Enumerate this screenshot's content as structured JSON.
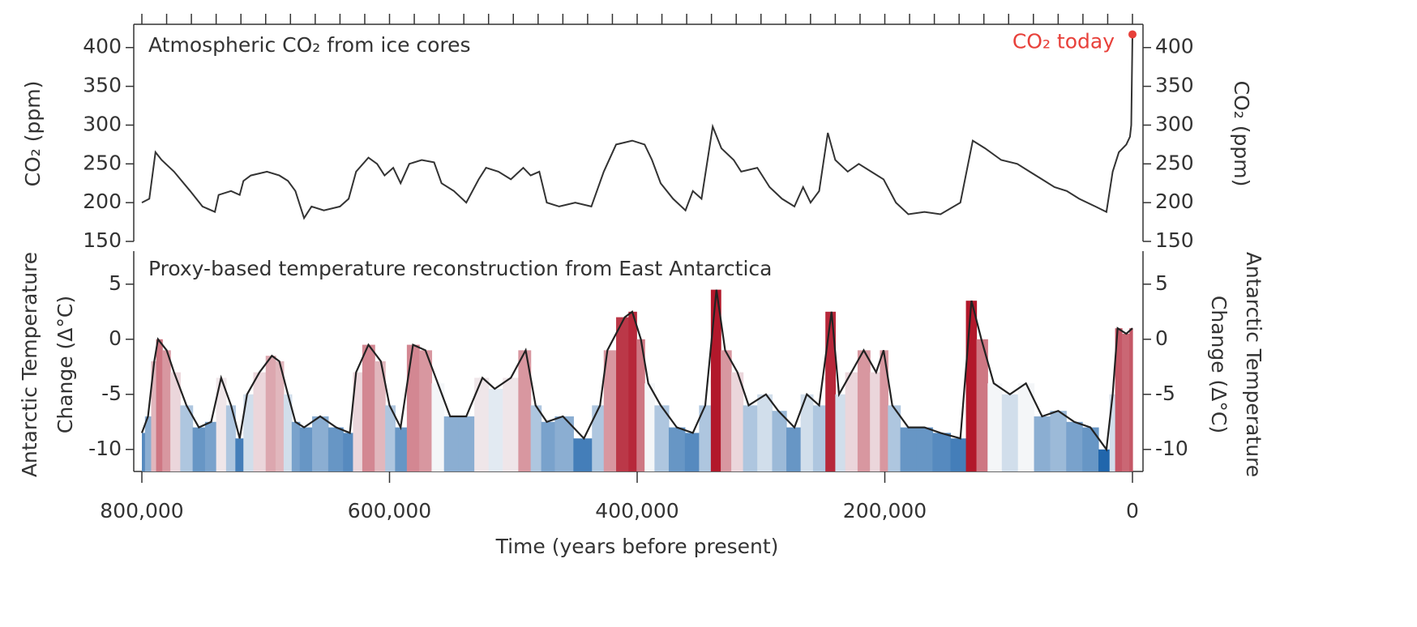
{
  "chart_data": [
    {
      "type": "line",
      "title": "Atmospheric CO₂ from ice cores",
      "y_label": "CO₂ (ppm)",
      "color": "#333333",
      "x": [
        800000,
        794000,
        789000,
        784000,
        774000,
        761000,
        751000,
        741000,
        738000,
        728000,
        721000,
        718000,
        712000,
        699000,
        689000,
        682000,
        676000,
        669000,
        663000,
        653000,
        640000,
        633000,
        627000,
        617000,
        610000,
        604000,
        597000,
        591000,
        584000,
        574000,
        564000,
        558000,
        548000,
        538000,
        528000,
        522000,
        512000,
        502000,
        492000,
        486000,
        479000,
        473000,
        463000,
        450000,
        437000,
        427000,
        417000,
        404000,
        394000,
        388000,
        381000,
        371000,
        361000,
        355000,
        348000,
        339000,
        332000,
        322000,
        316000,
        303000,
        293000,
        283000,
        273000,
        266000,
        260000,
        253000,
        246000,
        240000,
        230000,
        221000,
        211000,
        201000,
        191000,
        181000,
        168000,
        155000,
        139000,
        129000,
        119000,
        106000,
        93000,
        83000,
        73000,
        63000,
        53000,
        43000,
        30000,
        21000,
        16000,
        11000,
        5000,
        2000,
        1000,
        0
      ],
      "values": [
        200,
        205,
        265,
        255,
        240,
        215,
        195,
        188,
        210,
        215,
        210,
        228,
        235,
        240,
        235,
        228,
        215,
        180,
        195,
        190,
        195,
        205,
        240,
        258,
        250,
        235,
        245,
        225,
        250,
        255,
        252,
        225,
        215,
        200,
        230,
        245,
        240,
        230,
        245,
        235,
        240,
        200,
        195,
        200,
        195,
        240,
        275,
        280,
        275,
        255,
        225,
        205,
        190,
        215,
        205,
        298,
        270,
        255,
        240,
        245,
        220,
        205,
        195,
        220,
        200,
        215,
        290,
        255,
        240,
        250,
        240,
        230,
        200,
        185,
        188,
        185,
        200,
        280,
        270,
        255,
        250,
        240,
        230,
        220,
        215,
        205,
        195,
        188,
        240,
        265,
        275,
        285,
        300,
        417
      ],
      "xlim": [
        800000,
        0
      ],
      "ylim": [
        150,
        430
      ],
      "yticks": [
        150,
        200,
        250,
        300,
        350,
        400
      ],
      "xminorticks": [
        0,
        20000,
        40000,
        60000,
        80000,
        100000,
        120000,
        140000,
        160000,
        180000,
        200000,
        220000,
        240000,
        260000,
        280000,
        300000,
        320000,
        340000,
        360000,
        380000,
        400000,
        420000,
        440000,
        460000,
        480000,
        500000,
        520000,
        540000,
        560000,
        580000,
        600000,
        620000,
        640000,
        660000,
        680000,
        700000,
        720000,
        740000,
        760000,
        780000,
        800000
      ],
      "annotation": {
        "text": "CO₂ today",
        "x": 0,
        "value": 417,
        "color": "#e8403a"
      }
    },
    {
      "type": "area",
      "title": "Proxy-based temperature reconstruction from East Antarctica",
      "y_label": [
        "Antarctic Temperature",
        "Change (Δ°C)"
      ],
      "x_label": "Time (years before present)",
      "color": "#222222",
      "x": [
        800000,
        795000,
        790000,
        787000,
        780000,
        774000,
        764000,
        754000,
        744000,
        736000,
        728000,
        721000,
        715000,
        705000,
        695000,
        689000,
        682000,
        676000,
        669000,
        656000,
        643000,
        632000,
        627000,
        617000,
        607000,
        600000,
        591000,
        581000,
        571000,
        561000,
        551000,
        538000,
        525000,
        515000,
        502000,
        490000,
        482000,
        473000,
        460000,
        443000,
        430000,
        424000,
        410000,
        404000,
        397000,
        391000,
        381000,
        368000,
        355000,
        345000,
        336000,
        329000,
        319000,
        310000,
        296000,
        286000,
        273000,
        263000,
        253000,
        243000,
        237000,
        227000,
        217000,
        207000,
        201000,
        194000,
        181000,
        168000,
        155000,
        139000,
        130000,
        122000,
        112000,
        99000,
        86000,
        73000,
        60000,
        47000,
        34000,
        21000,
        16000,
        12000,
        5000,
        0
      ],
      "values": [
        -8.5,
        -7,
        -2,
        0,
        -1,
        -3,
        -6,
        -8,
        -7.5,
        -3.5,
        -6,
        -9,
        -5,
        -3,
        -1.5,
        -2,
        -5,
        -7.5,
        -8,
        -7,
        -8,
        -8.5,
        -3,
        -0.5,
        -2,
        -6,
        -8,
        -0.5,
        -1,
        -4,
        -7,
        -7,
        -3.5,
        -4.5,
        -3.5,
        -1,
        -6,
        -7.5,
        -7,
        -9,
        -6,
        -1,
        2,
        2.5,
        0,
        -4,
        -6,
        -8,
        -8.5,
        -6,
        4.5,
        -1,
        -3,
        -6,
        -5,
        -6.5,
        -8,
        -5,
        -6,
        2.5,
        -5,
        -3,
        -1,
        -3,
        -1,
        -6,
        -8,
        -8,
        -8.5,
        -9,
        3.5,
        0,
        -4,
        -5,
        -4,
        -7,
        -6.5,
        -7.5,
        -8,
        -10,
        -5,
        1,
        0.5,
        1
      ],
      "xlim": [
        800000,
        0
      ],
      "ylim": [
        -12,
        8
      ],
      "yticks": [
        -10,
        -5,
        0,
        5
      ],
      "xticks": [
        {
          "value": 800000,
          "label": "800,000"
        },
        {
          "value": 600000,
          "label": "600,000"
        },
        {
          "value": 400000,
          "label": "400,000"
        },
        {
          "value": 200000,
          "label": "200,000"
        },
        0
      ],
      "color_stops": [
        {
          "value": -10,
          "color": "#2166ac"
        },
        {
          "value": -4,
          "color": "#f4f6f8"
        },
        {
          "value": 3,
          "color": "#b2182b"
        }
      ]
    }
  ]
}
